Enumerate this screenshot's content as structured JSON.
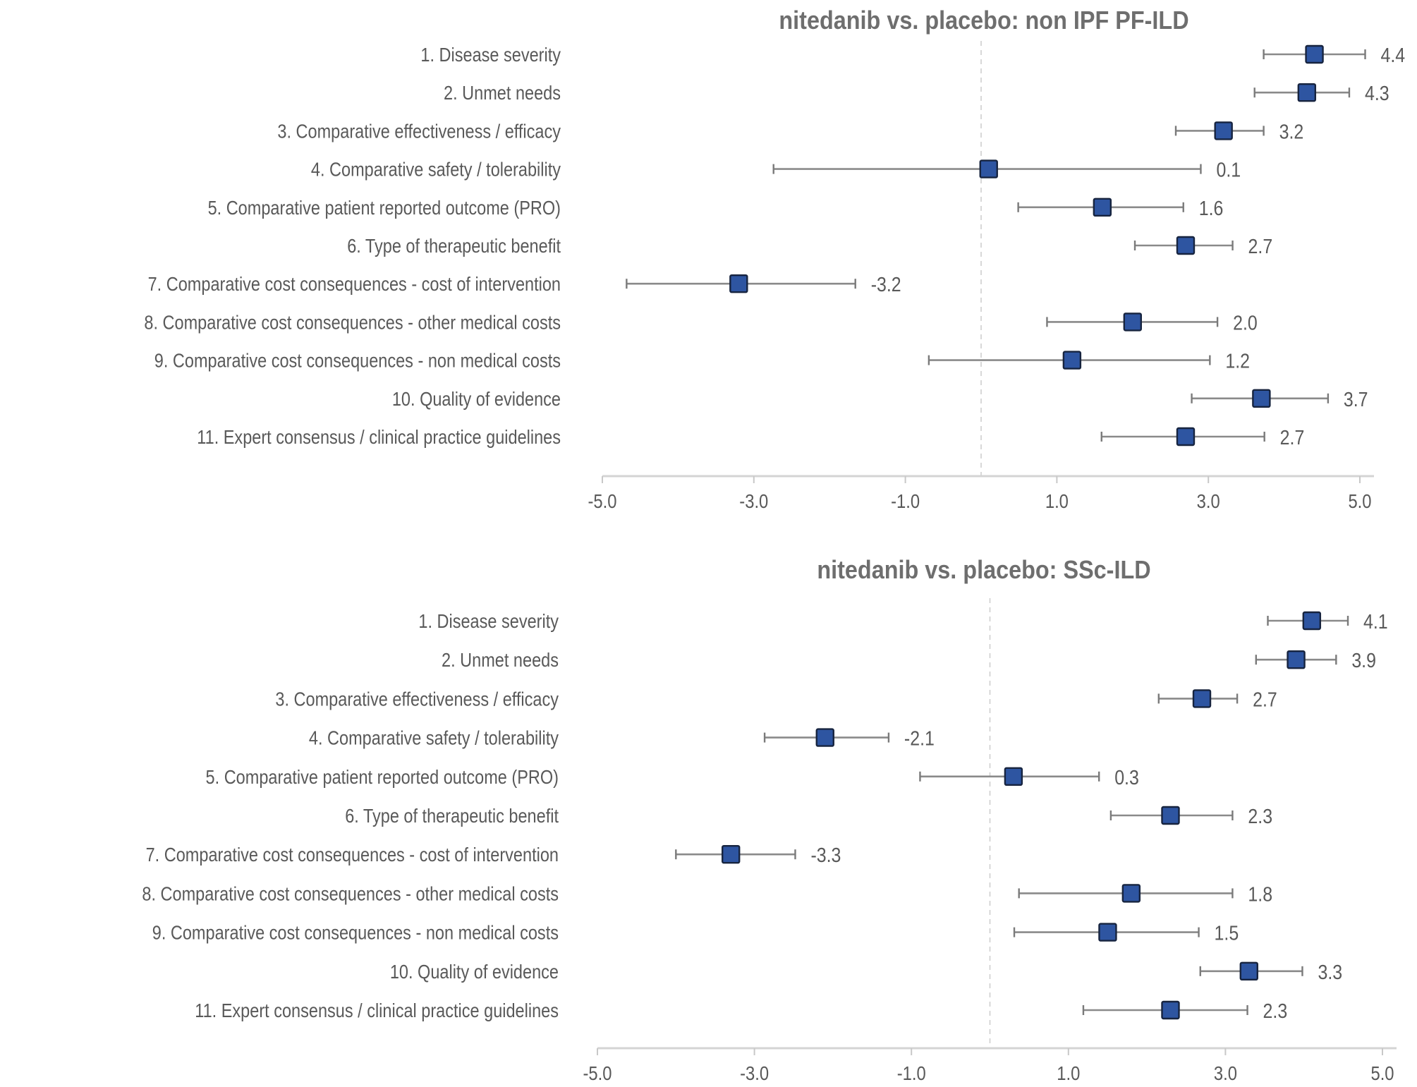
{
  "chart_data": [
    {
      "type": "scatter",
      "subtype": "forest-plot",
      "title": "nitedanib vs. placebo: non IPF PF-ILD",
      "xlabel": "",
      "ylabel": "",
      "xlim": [
        -5.0,
        5.0
      ],
      "xticks": [
        -5.0,
        -3.0,
        -1.0,
        1.0,
        3.0,
        5.0
      ],
      "xtick_labels": [
        "-5.0",
        "-3.0",
        "-1.0",
        "1.0",
        "3.0",
        "5.0"
      ],
      "reference_line": 0,
      "grid": false,
      "legend": "none",
      "categories": [
        "1. Disease severity",
        "2. Unmet needs",
        "3. Comparative effectiveness / efficacy",
        "4. Comparative safety / tolerability",
        "5. Comparative patient reported outcome (PRO)",
        "6. Type of therapeutic benefit",
        "7. Comparative cost consequences - cost of intervention",
        "8. Comparative cost consequences - other medical costs",
        "9. Comparative cost consequences - non medical costs",
        "10. Quality of evidence",
        "11. Expert consensus / clinical practice guidelines"
      ],
      "values": [
        4.4,
        4.3,
        3.2,
        0.1,
        1.6,
        2.7,
        -3.2,
        2.0,
        1.2,
        3.7,
        2.7
      ],
      "value_labels": [
        "4.4",
        "4.3",
        "3.2",
        "0.1",
        "1.6",
        "2.7",
        "-3.2",
        "2.0",
        "1.2",
        "3.7",
        "2.7"
      ],
      "ci_low": [
        3.73,
        3.61,
        2.57,
        -2.74,
        0.49,
        2.03,
        -4.68,
        0.87,
        -0.69,
        2.78,
        1.59
      ],
      "ci_high": [
        5.07,
        4.86,
        3.73,
        2.9,
        2.67,
        3.32,
        -1.66,
        3.12,
        3.02,
        4.58,
        3.74
      ]
    },
    {
      "type": "scatter",
      "subtype": "forest-plot",
      "title": "nitedanib vs. placebo: SSc-ILD",
      "xlabel": "",
      "ylabel": "",
      "xlim": [
        -5.0,
        5.0
      ],
      "xticks": [
        -5.0,
        -3.0,
        -1.0,
        1.0,
        3.0,
        5.0
      ],
      "xtick_labels": [
        "-5.0",
        "-3.0",
        "-1.0",
        "1.0",
        "3.0",
        "5.0"
      ],
      "reference_line": 0,
      "grid": false,
      "legend": "none",
      "categories": [
        "1. Disease severity",
        "2. Unmet needs",
        "3. Comparative effectiveness / efficacy",
        "4. Comparative safety / tolerability",
        "5. Comparative patient reported outcome (PRO)",
        "6. Type of therapeutic benefit",
        "7. Comparative cost consequences - cost of intervention",
        "8. Comparative cost consequences - other medical costs",
        "9. Comparative cost consequences - non medical costs",
        "10. Quality of evidence",
        "11. Expert consensus / clinical practice guidelines"
      ],
      "values": [
        4.1,
        3.9,
        2.7,
        -2.1,
        0.3,
        2.3,
        -3.3,
        1.8,
        1.5,
        3.3,
        2.3
      ],
      "value_labels": [
        "4.1",
        "3.9",
        "2.7",
        "-2.1",
        "0.3",
        "2.3",
        "-3.3",
        "1.8",
        "1.5",
        "3.3",
        "2.3"
      ],
      "ci_low": [
        3.54,
        3.39,
        2.15,
        -2.87,
        -0.89,
        1.54,
        -4.0,
        0.37,
        0.31,
        2.68,
        1.19
      ],
      "ci_high": [
        4.56,
        4.41,
        3.15,
        -1.29,
        1.39,
        3.09,
        -2.48,
        3.09,
        2.66,
        3.98,
        3.28
      ]
    }
  ],
  "colors": {
    "point_fill": "#2e55a1",
    "point_border": "#17243f",
    "whisker": "#8a8a8a",
    "text": "#595959",
    "title": "#6e6e6e"
  }
}
